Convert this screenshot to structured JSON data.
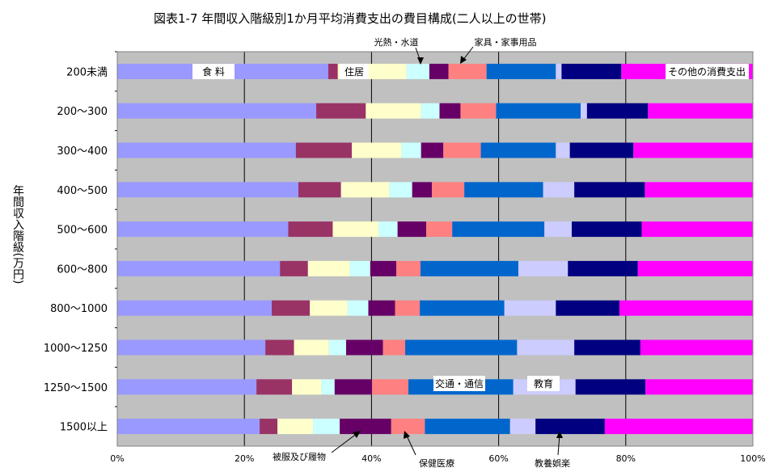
{
  "chart_data": {
    "type": "bar",
    "orientation": "horizontal",
    "stacked": "percent",
    "title": "図表1-7 年間収入階級別1か月平均消費支出の費目構成(二人以上の世帯)",
    "ylabel": "年間収入階級(万円)",
    "xlabel": "",
    "xlim": [
      0,
      100
    ],
    "x_ticks": [
      "0%",
      "20%",
      "40%",
      "60%",
      "80%",
      "100%"
    ],
    "categories": [
      "200未満",
      "200～300",
      "300～400",
      "400～500",
      "500～600",
      "600～800",
      "800～1000",
      "1000～1250",
      "1250～1500",
      "1500以上"
    ],
    "series": [
      {
        "name": "食料",
        "color": "#9999ff",
        "values": [
          33.2,
          31.3,
          28.1,
          28.5,
          26.9,
          25.6,
          24.3,
          23.3,
          21.9,
          22.4
        ]
      },
      {
        "name": "住居",
        "color": "#993366",
        "values": [
          1.5,
          7.8,
          8.8,
          6.7,
          7.0,
          4.4,
          6.0,
          4.5,
          5.6,
          2.8
        ]
      },
      {
        "name": "光熱・水道",
        "color": "#ffffcc",
        "values": [
          10.8,
          8.7,
          7.8,
          7.6,
          7.2,
          6.6,
          5.9,
          5.5,
          4.6,
          5.6
        ]
      },
      {
        "name": "家具・家事用品",
        "color": "#ccffff",
        "values": [
          3.6,
          2.9,
          3.1,
          3.6,
          3.0,
          3.2,
          3.3,
          2.7,
          2.1,
          4.2
        ]
      },
      {
        "name": "被服及び履物",
        "color": "#660066",
        "values": [
          3.0,
          3.3,
          3.5,
          3.1,
          4.5,
          4.1,
          4.2,
          5.8,
          5.9,
          8.1
        ]
      },
      {
        "name": "保健医療",
        "color": "#ff8080",
        "values": [
          6.0,
          5.6,
          5.9,
          5.1,
          4.1,
          3.8,
          3.9,
          3.5,
          5.7,
          5.3
        ]
      },
      {
        "name": "交通・通信",
        "color": "#0066cc",
        "values": [
          10.9,
          13.3,
          11.8,
          12.4,
          14.5,
          15.4,
          13.3,
          17.6,
          16.5,
          13.4
        ]
      },
      {
        "name": "教育",
        "color": "#ccccff",
        "values": [
          0.9,
          1.0,
          2.2,
          4.9,
          4.3,
          7.8,
          8.1,
          9.0,
          9.8,
          4.0
        ]
      },
      {
        "name": "教養娯楽",
        "color": "#000080",
        "values": [
          9.4,
          9.6,
          10.0,
          11.1,
          11.0,
          11.0,
          10.0,
          10.4,
          11.0,
          10.9
        ]
      },
      {
        "name": "その他の消費支出",
        "color": "#ff00ff",
        "values": [
          20.7,
          16.5,
          18.8,
          17.0,
          17.5,
          18.1,
          21.0,
          17.7,
          16.9,
          23.3
        ]
      }
    ],
    "annotations": {
      "food": "食 料",
      "housing": "住居",
      "utilities": "光熱・水道",
      "furniture": "家具・家事用品",
      "other": "その他の消費支出",
      "transport": "交通・通信",
      "education": "教育",
      "clothing": "被服及び履物",
      "medical": "保健医療",
      "recreation": "教養娯楽"
    },
    "colors": {
      "plot_background": "#c0c0c0",
      "grid": "#000000",
      "label_box": "#ffffff"
    },
    "grid": true
  }
}
